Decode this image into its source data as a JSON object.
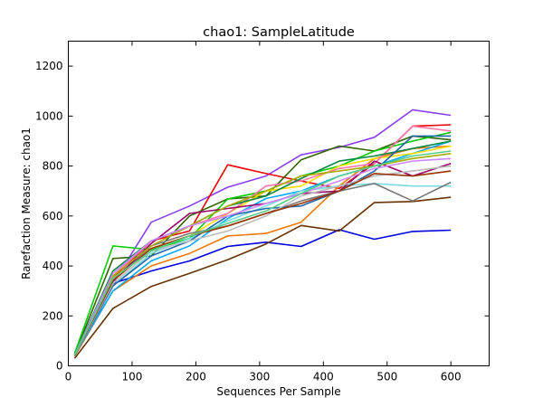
{
  "chart_data": {
    "type": "line",
    "title": "chao1: SampleLatitude",
    "xlabel": "Sequences Per Sample",
    "ylabel": "Rarefaction Measure: chao1",
    "xlim": [
      0,
      660
    ],
    "ylim": [
      0,
      1300
    ],
    "xticks": [
      0,
      100,
      200,
      300,
      400,
      500,
      600
    ],
    "yticks": [
      0,
      200,
      400,
      600,
      800,
      1000,
      1200
    ],
    "grid": false,
    "legend": "none",
    "x": [
      10,
      70,
      130,
      190,
      250,
      310,
      365,
      425,
      480,
      540,
      600
    ],
    "series": [
      {
        "color": "#8a3ff0",
        "values": [
          50,
          330,
          575,
          640,
          715,
          760,
          845,
          875,
          915,
          1025,
          1003
        ]
      },
      {
        "color": "#ee0000",
        "values": [
          45,
          350,
          500,
          540,
          805,
          770,
          740,
          710,
          810,
          960,
          965
        ]
      },
      {
        "color": "#0000dd",
        "values": [
          40,
          330,
          380,
          420,
          478,
          495,
          478,
          545,
          507,
          538,
          543
        ]
      },
      {
        "color": "#663300",
        "values": [
          30,
          230,
          318,
          370,
          425,
          488,
          562,
          540,
          654,
          658,
          675
        ]
      },
      {
        "color": "#336600",
        "values": [
          45,
          430,
          440,
          600,
          668,
          680,
          825,
          880,
          860,
          920,
          905
        ]
      },
      {
        "color": "#00cc00",
        "values": [
          50,
          480,
          465,
          510,
          668,
          700,
          760,
          800,
          860,
          900,
          935
        ]
      },
      {
        "color": "#ee7700",
        "values": [
          38,
          300,
          400,
          450,
          520,
          530,
          575,
          720,
          830,
          870,
          880
        ]
      },
      {
        "color": "#00aaff",
        "values": [
          42,
          300,
          420,
          480,
          590,
          670,
          700,
          760,
          800,
          850,
          900
        ]
      },
      {
        "color": "#ffdd00",
        "values": [
          45,
          350,
          470,
          520,
          610,
          700,
          720,
          800,
          830,
          850,
          880
        ]
      },
      {
        "color": "#77dddd",
        "values": [
          40,
          320,
          450,
          510,
          580,
          640,
          700,
          720,
          730,
          720,
          720
        ]
      },
      {
        "color": "#ff77aa",
        "values": [
          44,
          360,
          500,
          560,
          610,
          720,
          740,
          790,
          810,
          960,
          940
        ]
      },
      {
        "color": "#777777",
        "values": [
          42,
          340,
          480,
          530,
          560,
          610,
          660,
          700,
          730,
          660,
          735
        ]
      },
      {
        "color": "#008844",
        "values": [
          45,
          380,
          500,
          560,
          640,
          680,
          750,
          820,
          840,
          870,
          900
        ]
      },
      {
        "color": "#990066",
        "values": [
          42,
          340,
          490,
          610,
          630,
          650,
          690,
          700,
          820,
          760,
          810
        ]
      },
      {
        "color": "#2266aa",
        "values": [
          40,
          320,
          440,
          500,
          600,
          630,
          640,
          700,
          780,
          920,
          920
        ]
      },
      {
        "color": "#aaaa00",
        "values": [
          43,
          360,
          480,
          560,
          640,
          700,
          760,
          780,
          800,
          830,
          850
        ]
      },
      {
        "color": "#cc88ff",
        "values": [
          44,
          370,
          500,
          560,
          600,
          650,
          690,
          740,
          790,
          820,
          830
        ]
      },
      {
        "color": "#bbbbbb",
        "values": [
          41,
          330,
          460,
          500,
          540,
          600,
          680,
          720,
          760,
          780,
          800
        ]
      },
      {
        "color": "#993300",
        "values": [
          42,
          340,
          470,
          520,
          560,
          610,
          650,
          700,
          770,
          760,
          780
        ]
      },
      {
        "color": "#55cc88",
        "values": [
          43,
          350,
          460,
          520,
          570,
          620,
          690,
          760,
          800,
          840,
          860
        ]
      }
    ]
  }
}
